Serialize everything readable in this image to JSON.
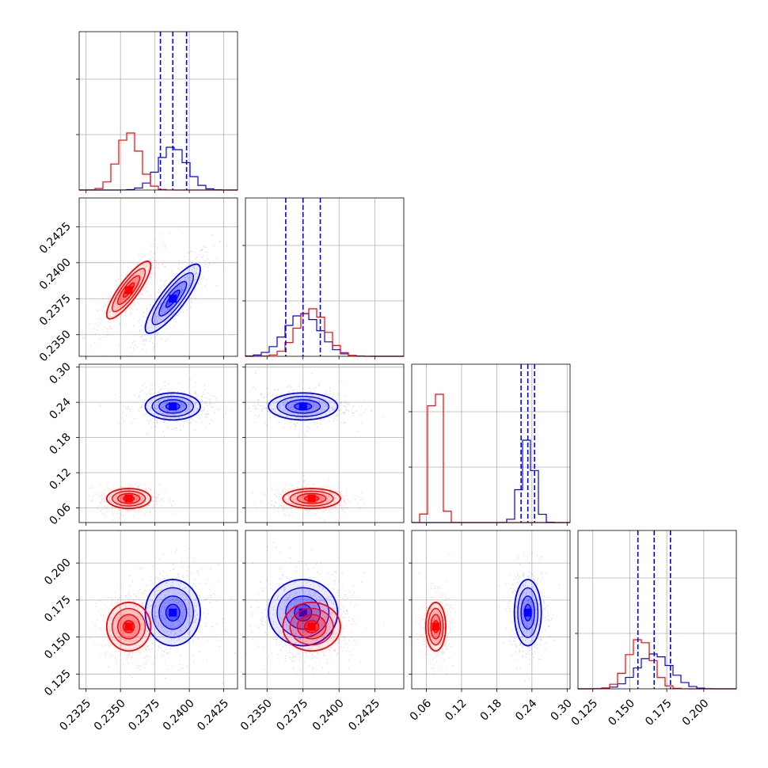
{
  "colors": {
    "series_a": "#0000ff",
    "series_b": "#ff0000",
    "grid": "#b0b0b0"
  },
  "chart_data": {
    "type": "corner",
    "grid": true,
    "params": [
      {
        "range": [
          0.232,
          0.2435
        ],
        "ticks": [
          0.2325,
          0.235,
          0.2375,
          0.24,
          0.2425
        ],
        "tick_labels": [
          "0.2325",
          "0.2350",
          "0.2375",
          "0.2400",
          "0.2425"
        ]
      },
      {
        "range": [
          0.2335,
          0.2445
        ],
        "ticks": [
          0.235,
          0.2375,
          0.24,
          0.2425
        ],
        "tick_labels": [
          "0.2350",
          "0.2375",
          "0.2400",
          "0.2425"
        ]
      },
      {
        "range": [
          0.035,
          0.305
        ],
        "ticks": [
          0.06,
          0.12,
          0.18,
          0.24,
          0.3
        ],
        "tick_labels": [
          "0.06",
          "0.12",
          "0.18",
          "0.24",
          "0.30"
        ]
      },
      {
        "range": [
          0.115,
          0.222
        ],
        "ticks": [
          0.125,
          0.15,
          0.175,
          0.2
        ],
        "tick_labels": [
          "0.125",
          "0.150",
          "0.175",
          "0.200"
        ]
      }
    ],
    "series": [
      {
        "color": "#0000ff",
        "mean": [
          0.2388,
          0.2375,
          0.233,
          0.1665
        ],
        "std": [
          0.001,
          0.0012,
          0.0115,
          0.0112
        ],
        "corr": [
          [
            1,
            0.85,
            0,
            0
          ],
          [
            0.85,
            1,
            0,
            0
          ],
          [
            0,
            0,
            1,
            0
          ],
          [
            0,
            0,
            0,
            1
          ]
        ],
        "quantiles": [
          [
            0.2379,
            0.2388,
            0.2398
          ],
          [
            0.2363,
            0.2375,
            0.2387
          ],
          [
            0.2215,
            0.233,
            0.2445
          ],
          [
            0.1555,
            0.1665,
            0.1775
          ]
        ],
        "hist_max": [
          0.27,
          0.27,
          0.52,
          0.22
        ]
      },
      {
        "color": "#ff0000",
        "mean": [
          0.2356,
          0.2381,
          0.076,
          0.157
        ],
        "std": [
          0.0008,
          0.001,
          0.0085,
          0.0082
        ],
        "corr": [
          [
            1,
            0.85,
            0,
            0
          ],
          [
            0.85,
            1,
            0,
            0
          ],
          [
            0,
            0,
            1,
            0
          ],
          [
            0,
            0,
            0,
            1
          ]
        ],
        "quantiles": [],
        "hist_max": [
          0.36,
          0.3,
          0.81,
          0.31
        ]
      }
    ]
  }
}
